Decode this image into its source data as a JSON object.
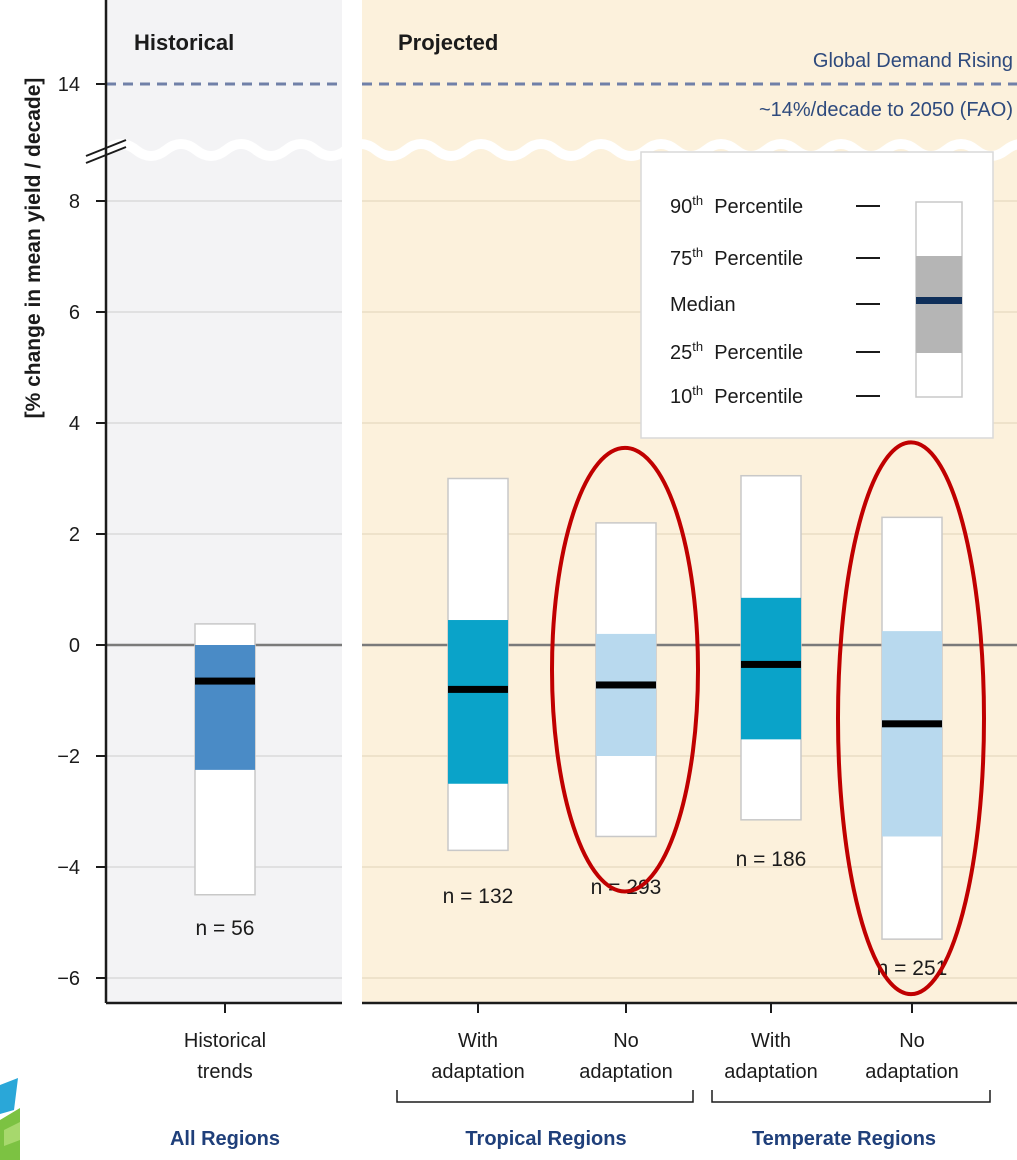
{
  "chart_data": {
    "type": "box",
    "ylabel": "[% change in mean yield / decade]",
    "y_ticks": [
      -6,
      -4,
      -2,
      0,
      2,
      4,
      6,
      8,
      14
    ],
    "axis_break": {
      "between": [
        8,
        14
      ]
    },
    "sections": [
      {
        "title": "Historical"
      },
      {
        "title": "Projected"
      }
    ],
    "reference_line": {
      "value": 14,
      "label_line1": "Global Demand Rising",
      "label_line2": "~14%/decade to 2050 (FAO)"
    },
    "groups": [
      {
        "label": "All Regions"
      },
      {
        "label": "Tropical Regions"
      },
      {
        "label": "Temperate Regions"
      }
    ],
    "boxes": [
      {
        "category_line1": "Historical",
        "category_line2": "trends",
        "group": 0,
        "p10": -4.5,
        "p25": -2.25,
        "median": -0.65,
        "p75": 0.0,
        "p90": 0.38,
        "n_label": "n = 56",
        "color": "#4a8bc6",
        "highlighted": false
      },
      {
        "category_line1": "With",
        "category_line2": "adaptation",
        "group": 1,
        "p10": -3.7,
        "p25": -2.5,
        "median": -0.8,
        "p75": 0.45,
        "p90": 3.0,
        "n_label": "n = 132",
        "color": "#0aa3c9",
        "highlighted": false
      },
      {
        "category_line1": "No",
        "category_line2": "adaptation",
        "group": 1,
        "p10": -3.45,
        "p25": -2.0,
        "median": -0.72,
        "p75": 0.2,
        "p90": 2.2,
        "n_label": "n = 293",
        "color": "#b8d9ee",
        "highlighted": true
      },
      {
        "category_line1": "With",
        "category_line2": "adaptation",
        "group": 2,
        "p10": -3.15,
        "p25": -1.7,
        "median": -0.35,
        "p75": 0.85,
        "p90": 3.05,
        "n_label": "n = 186",
        "color": "#0aa3c9",
        "highlighted": false
      },
      {
        "category_line1": "No",
        "category_line2": "adaptation",
        "group": 2,
        "p10": -5.3,
        "p25": -3.45,
        "median": -1.42,
        "p75": 0.25,
        "p90": 2.3,
        "n_label": "n = 251",
        "color": "#b8d9ee",
        "highlighted": true
      }
    ],
    "legend": {
      "placement": "top-right",
      "entries": [
        {
          "sup": "th",
          "num": "90",
          "text": "Percentile"
        },
        {
          "sup": "th",
          "num": "75",
          "text": "Percentile"
        },
        {
          "sup": "",
          "num": "",
          "text": "Median"
        },
        {
          "sup": "th",
          "num": "25",
          "text": "Percentile"
        },
        {
          "sup": "th",
          "num": "10",
          "text": "Percentile"
        }
      ]
    },
    "colors": {
      "historical_panel": "#f3f3f5",
      "projected_panel": "#fcf1dc",
      "median": "#000000",
      "legend_median": "#0f2f5a",
      "legend_iqr": "#b5b5b5",
      "highlight_ellipse": "#c00000",
      "reference_line": "#7080a8"
    }
  }
}
